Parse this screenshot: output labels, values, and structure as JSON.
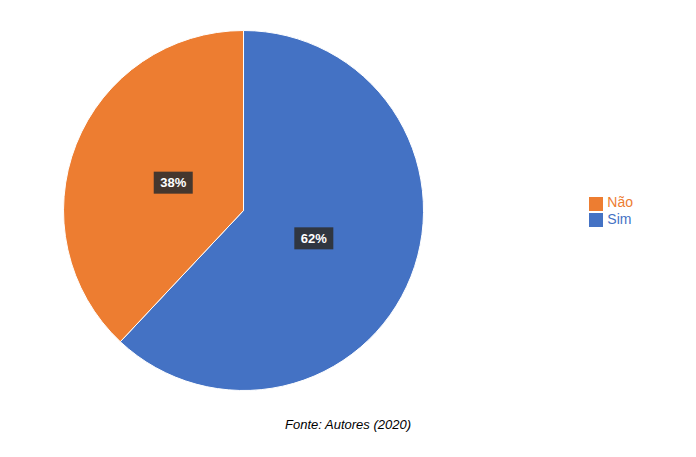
{
  "chart_data": {
    "type": "pie",
    "categories": [
      "Sim",
      "Não"
    ],
    "values": [
      62,
      38
    ],
    "value_labels": [
      "62%",
      "38%"
    ],
    "colors": [
      "#4472C4",
      "#ED7D31"
    ],
    "data_labels": true,
    "legend": "right",
    "annotations": [
      "Fonte: Autores (2020)"
    ]
  }
}
